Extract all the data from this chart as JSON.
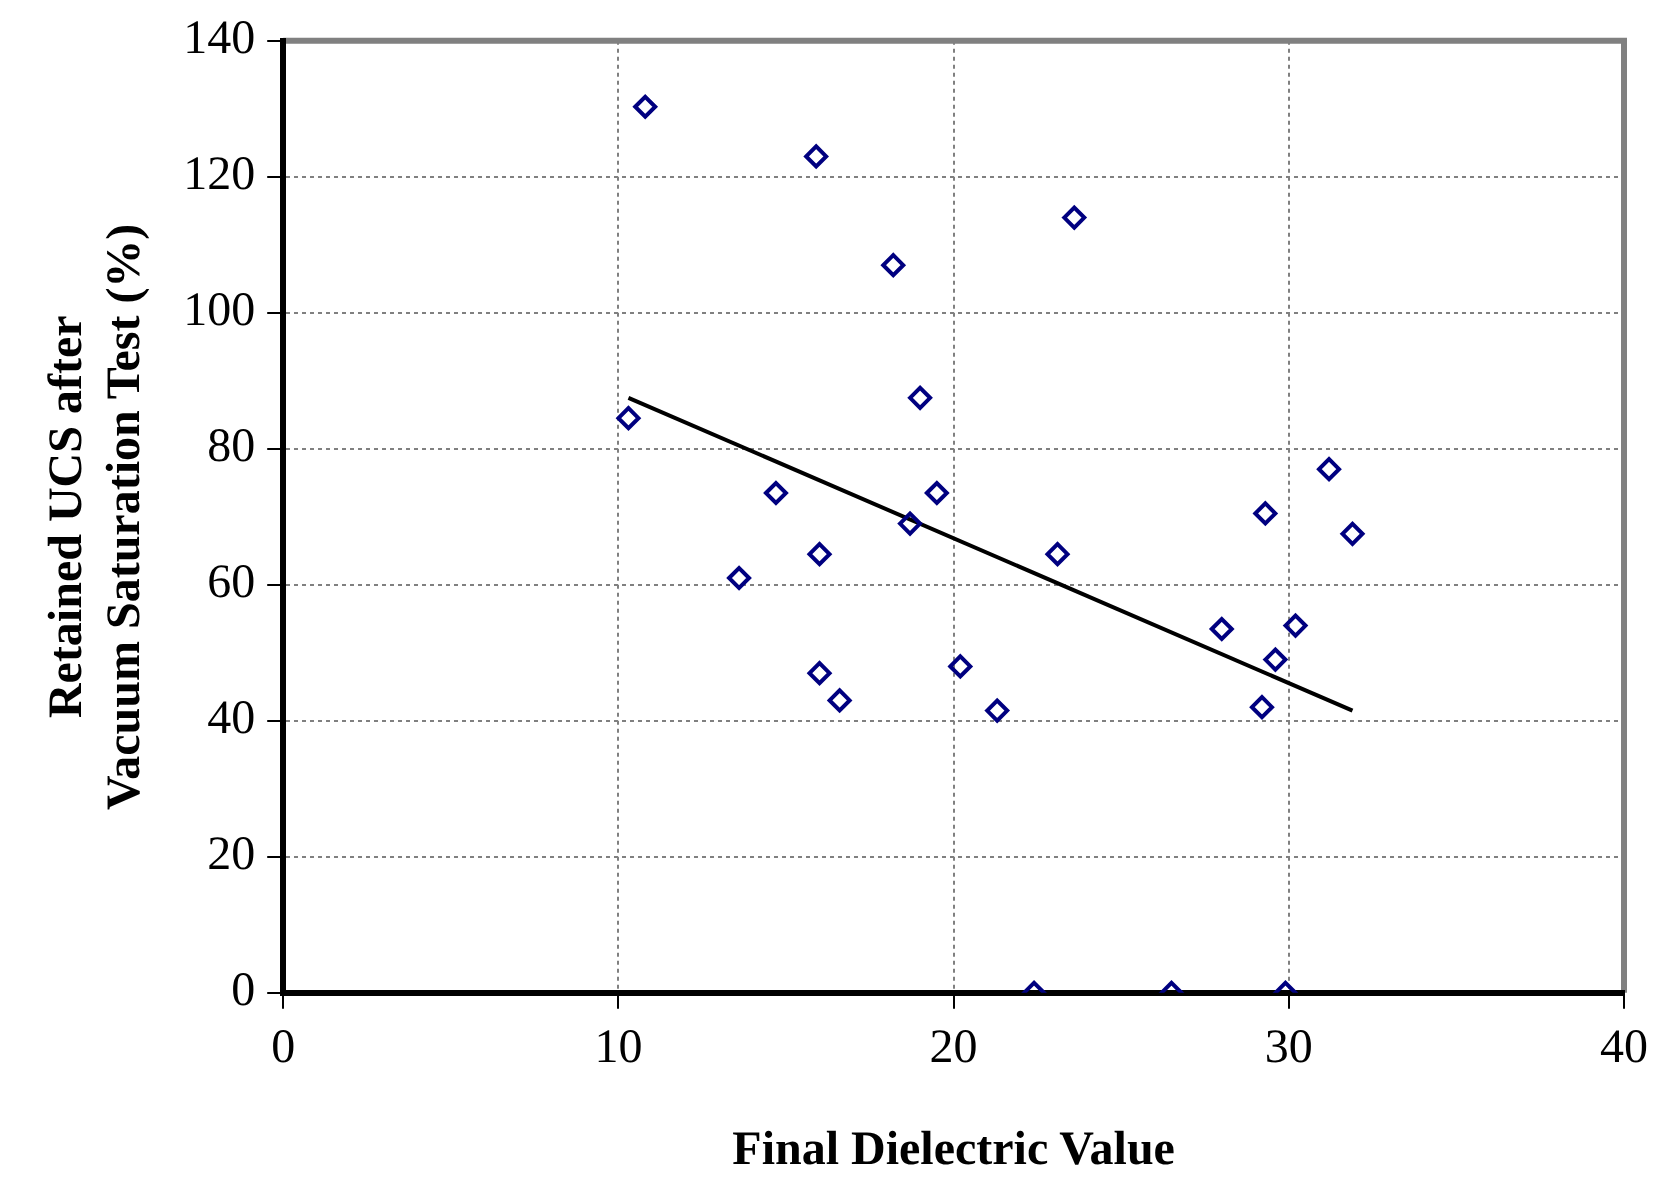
{
  "chart_data": {
    "type": "scatter",
    "xlabel": "Final Dielectric Value",
    "ylabel": "Retained UCS after\nVacuum Saturation Test (%)",
    "xlim": [
      0,
      40
    ],
    "xticks": [
      0,
      10,
      20,
      30,
      40
    ],
    "ylim": [
      0,
      140
    ],
    "yticks": [
      0,
      20,
      40,
      60,
      80,
      100,
      120,
      140
    ],
    "grid": true,
    "legend": false,
    "series": [
      {
        "type": "scatter",
        "color": "#000080",
        "marker": "diamond",
        "x": [
          10.3,
          10.8,
          15.9,
          18.2,
          23.6,
          19.0,
          14.7,
          19.5,
          18.7,
          16.0,
          13.6,
          23.1,
          16.0,
          16.6,
          20.2,
          21.3,
          22.4,
          26.5,
          29.9,
          28.0,
          29.3,
          31.2,
          31.9,
          30.2,
          29.6,
          29.2
        ],
        "values": [
          84.5,
          130.3,
          123,
          107,
          114,
          87.5,
          73.5,
          73.5,
          69,
          64.5,
          61,
          64.5,
          47,
          43,
          48,
          41.5,
          0,
          0,
          0,
          53.5,
          70.5,
          77,
          67.5,
          54,
          49,
          42
        ]
      },
      {
        "type": "line",
        "color": "#000000",
        "marker": "none",
        "x": [
          10.3,
          31.9
        ],
        "values": [
          87.5,
          41.5
        ]
      }
    ]
  }
}
